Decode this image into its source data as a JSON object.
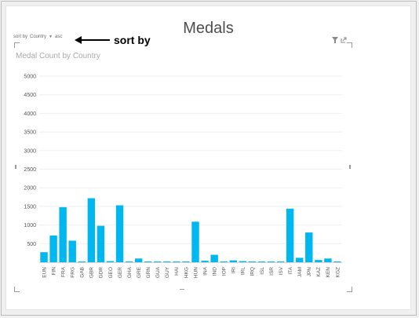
{
  "title": "Medals",
  "sort": {
    "label": "sort by",
    "field": "Country",
    "order": "asc"
  },
  "annotation": {
    "label": "sort by"
  },
  "icons": [
    "filter-icon",
    "expand-icon",
    "dropdown-arrow-icon"
  ],
  "colors": {
    "bar": "#00b8ef",
    "axis_text": "#555555",
    "grid": "#efefef"
  },
  "chart_data": {
    "type": "bar",
    "title": "Medal Count by Country",
    "xlabel": "",
    "ylabel": "",
    "ylim": [
      0,
      5000
    ],
    "yticks": [
      "5000",
      "4500",
      "4000",
      "3500",
      "3000",
      "2500",
      "2000",
      "1500",
      "1000",
      "500"
    ],
    "grid": true,
    "categories": [
      "EUN",
      "FIN",
      "FRA",
      "FRG",
      "GAB",
      "GBR",
      "GDR",
      "GEO",
      "GER",
      "GHA",
      "GRE",
      "GRN",
      "GUA",
      "GUY",
      "HAI",
      "HKG",
      "HUN",
      "INA",
      "IND",
      "IOP",
      "IRI",
      "IRL",
      "IRQ",
      "ISL",
      "ISR",
      "ISV",
      "ITA",
      "JAM",
      "JPN",
      "KAZ",
      "KEN",
      "KGZ"
    ],
    "values": [
      270,
      720,
      1480,
      580,
      20,
      1720,
      980,
      30,
      1530,
      20,
      100,
      20,
      20,
      20,
      20,
      20,
      1090,
      40,
      200,
      20,
      50,
      30,
      20,
      20,
      20,
      20,
      1440,
      120,
      800,
      60,
      100,
      20
    ]
  }
}
